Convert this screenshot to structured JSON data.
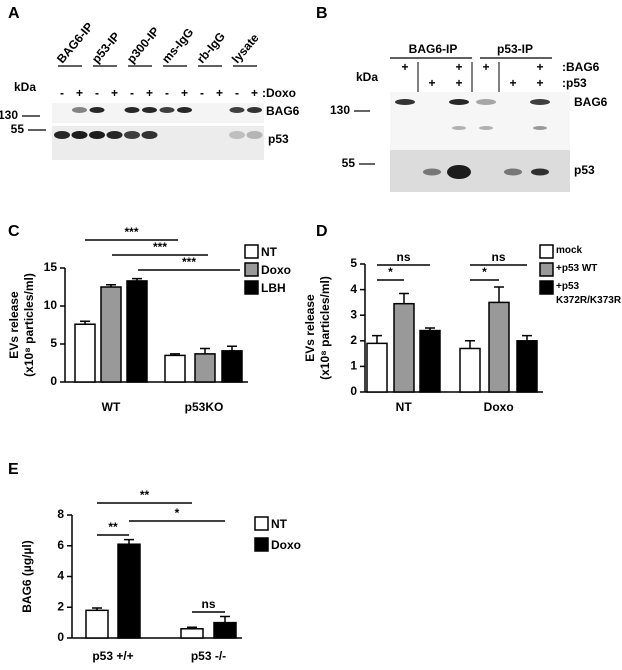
{
  "blots": [
    {
      "panel": "A",
      "columns": [
        "BAG6-IP",
        "p53-IP",
        "p300-IP",
        "ms-IgG",
        "rb-IgG",
        "lysate"
      ],
      "kda_label": "kDa",
      "treatment_label": ":Doxo",
      "lane_signs": [
        "-",
        "+",
        "-",
        "+",
        "-",
        "+",
        "-",
        "+",
        "-",
        "+",
        "-",
        "+"
      ],
      "markers": [
        "130",
        "55"
      ],
      "bands": [
        "BAG6",
        "p53"
      ]
    },
    {
      "panel": "B",
      "columns": [
        "BAG6-IP",
        "p53-IP"
      ],
      "kda_label": "kDa",
      "rows": [
        {
          "label": ":BAG6",
          "signs": [
            "+",
            null,
            "+",
            "+",
            null,
            "+"
          ]
        },
        {
          "label": ":p53",
          "signs": [
            null,
            "+",
            "+",
            null,
            "+",
            "+"
          ]
        }
      ],
      "markers": [
        "130",
        "55"
      ],
      "bands": [
        "BAG6",
        "p53"
      ]
    }
  ],
  "chart_data": [
    {
      "panel": "C",
      "type": "bar",
      "y_label": [
        "EVs release",
        "(x10⁸ particles/ml)"
      ],
      "categories": [
        "WT",
        "p53KO"
      ],
      "series": [
        {
          "name": "NT",
          "color": "#ffffff",
          "values": [
            7.6,
            3.5
          ],
          "errors": [
            0.4,
            0.2
          ]
        },
        {
          "name": "Doxo",
          "color": "#999999",
          "values": [
            12.5,
            3.7
          ],
          "errors": [
            0.3,
            0.7
          ]
        },
        {
          "name": "LBH",
          "color": "#000000",
          "values": [
            13.3,
            4.1
          ],
          "errors": [
            0.3,
            0.6
          ]
        }
      ],
      "ylim": [
        0,
        15
      ],
      "yticks": [
        0,
        5,
        10,
        15
      ],
      "annotations": [
        "***",
        "***",
        "***"
      ]
    },
    {
      "panel": "D",
      "type": "bar",
      "y_label": [
        "EVs release",
        "(x10⁸ particles/ml)"
      ],
      "categories": [
        "NT",
        "Doxo"
      ],
      "series": [
        {
          "name": "mock",
          "color": "#ffffff",
          "values": [
            1.9,
            1.7
          ],
          "errors": [
            0.3,
            0.3
          ]
        },
        {
          "name": "+p53 WT",
          "color": "#999999",
          "values": [
            3.45,
            3.5
          ],
          "errors": [
            0.4,
            0.6
          ]
        },
        {
          "name": "+p53 K372R/K373R",
          "color": "#000000",
          "values": [
            2.4,
            2.0
          ],
          "errors": [
            0.1,
            0.2
          ]
        }
      ],
      "ylim": [
        0,
        5
      ],
      "yticks": [
        0,
        1,
        2,
        3,
        4,
        5
      ],
      "annotations": [
        "ns",
        "*",
        "ns",
        "*"
      ]
    },
    {
      "panel": "E",
      "type": "bar",
      "y_label": [
        "BAG6 (µg/µl)"
      ],
      "categories": [
        "p53 +/+",
        "p53 -/-"
      ],
      "series": [
        {
          "name": "NT",
          "color": "#ffffff",
          "values": [
            1.8,
            0.6
          ],
          "errors": [
            0.15,
            0.1
          ]
        },
        {
          "name": "Doxo",
          "color": "#000000",
          "values": [
            6.1,
            1.0
          ],
          "errors": [
            0.3,
            0.4
          ]
        }
      ],
      "ylim": [
        0,
        8
      ],
      "yticks": [
        0,
        2,
        4,
        6,
        8
      ],
      "annotations": [
        "**",
        "**",
        "*",
        "ns"
      ]
    }
  ]
}
